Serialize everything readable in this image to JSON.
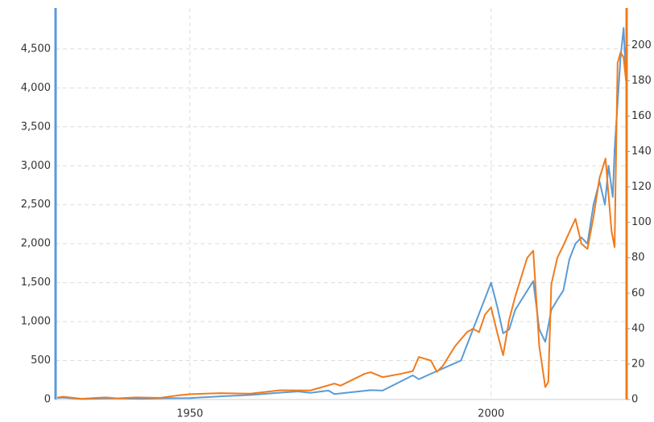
{
  "chart_data": {
    "type": "line",
    "xlim": [
      1927.7,
      2022.5
    ],
    "xticks": [
      1950,
      2000
    ],
    "ylim": [
      0,
      5025
    ],
    "yticks": [
      0,
      {
        "value": 500,
        "label": "500"
      },
      {
        "value": 1000,
        "label": "1,000"
      },
      {
        "value": 1500,
        "label": "1,500"
      },
      {
        "value": 2000,
        "label": "2,000"
      },
      {
        "value": 2500,
        "label": "2,500"
      },
      {
        "value": 3000,
        "label": "3,000"
      },
      {
        "value": 3500,
        "label": "3,500"
      },
      {
        "value": 4000,
        "label": "4,000"
      },
      {
        "value": 4500,
        "label": "4,500"
      }
    ],
    "y2lim": [
      0,
      221
    ],
    "y2ticks": [
      0,
      20,
      40,
      60,
      80,
      100,
      120,
      140,
      160,
      180,
      200
    ],
    "grid": true,
    "series": [
      {
        "color": "#5b9bd5",
        "axis": "y",
        "x": [
          1928,
          1929,
          1932,
          1937,
          1942,
          1946,
          1950,
          1955,
          1960,
          1965,
          1968,
          1970,
          1973,
          1974,
          1980,
          1982,
          1987,
          1988,
          1990,
          1995,
          1998,
          2000,
          2001,
          2002,
          2003,
          2004,
          2007,
          2008,
          2009,
          2010,
          2011,
          2012,
          2013,
          2014,
          2015,
          2016,
          2017,
          2018,
          2018.9,
          2019.5,
          2020.2,
          2020.5,
          2021,
          2021.5,
          2022,
          2022.4
        ],
        "values": [
          20,
          25,
          7,
          15,
          9,
          17,
          18,
          40,
          58,
          88,
          103,
          85,
          115,
          70,
          120,
          115,
          310,
          260,
          330,
          500,
          1100,
          1500,
          1200,
          850,
          900,
          1150,
          1520,
          900,
          740,
          1150,
          1280,
          1400,
          1800,
          2000,
          2080,
          2000,
          2500,
          2800,
          2500,
          3000,
          2600,
          3200,
          3800,
          4400,
          4770,
          4100
        ]
      },
      {
        "color": "#f07b1c",
        "axis": "y2",
        "x": [
          1928,
          1929,
          1932,
          1936,
          1938,
          1941,
          1945,
          1948,
          1950,
          1955,
          1960,
          1965,
          1970,
          1974,
          1975,
          1979,
          1980,
          1982,
          1985,
          1987,
          1988,
          1989,
          1990,
          1991,
          1992,
          1994,
          1996,
          1997,
          1998,
          1999,
          2000,
          2001,
          2002,
          2003,
          2004,
          2006,
          2007,
          2008,
          2009,
          2009.5,
          2010,
          2011,
          2012,
          2014,
          2015,
          2016,
          2017,
          2018,
          2019,
          2020,
          2020.5,
          2021,
          2021.5,
          2022,
          2022.4
        ],
        "values": [
          1.1,
          1.6,
          0.4,
          1.2,
          0.6,
          1.2,
          0.9,
          2.3,
          3,
          3.6,
          3.3,
          5.2,
          5.1,
          9,
          7.8,
          14.5,
          15.4,
          12.6,
          14.5,
          16,
          24,
          23,
          22,
          15.6,
          19,
          30,
          38,
          40,
          38,
          48,
          52,
          38,
          25,
          45,
          58,
          80,
          84,
          30,
          7,
          10,
          65,
          80,
          87,
          102,
          88,
          85,
          103,
          125,
          136,
          95,
          86,
          190,
          196,
          193,
          180
        ]
      }
    ]
  }
}
